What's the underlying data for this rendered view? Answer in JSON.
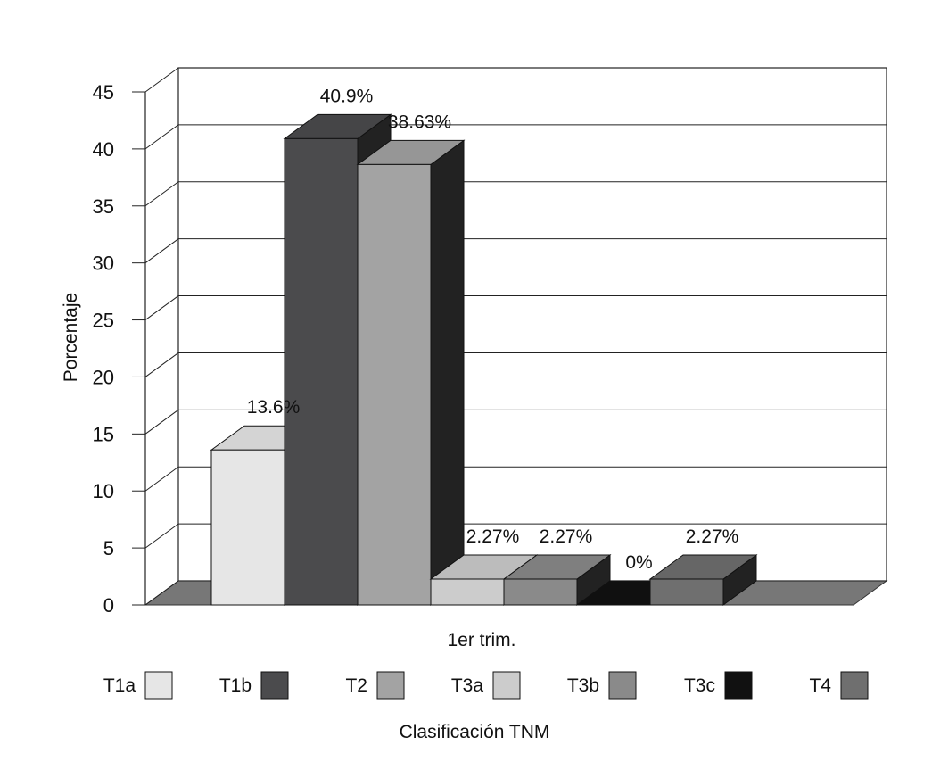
{
  "chart_data": {
    "type": "bar",
    "style": "3d-clustered-columns",
    "categories": [
      "1er trim."
    ],
    "series": [
      {
        "name": "T1a",
        "values": [
          13.6
        ],
        "label": "13.6%",
        "color": "#e6e6e6"
      },
      {
        "name": "T1b",
        "values": [
          40.9
        ],
        "label": "40.9%",
        "color": "#4b4b4d"
      },
      {
        "name": "T2",
        "values": [
          38.63
        ],
        "label": "38.63%",
        "color": "#a3a3a3"
      },
      {
        "name": "T3a",
        "values": [
          2.27
        ],
        "label": "2.27%",
        "color": "#cccccc"
      },
      {
        "name": "T3b",
        "values": [
          2.27
        ],
        "label": "2.27%",
        "color": "#8a8a8a"
      },
      {
        "name": "T3c",
        "values": [
          0
        ],
        "label": "0%",
        "color": "#111111"
      },
      {
        "name": "T4",
        "values": [
          2.27
        ],
        "label": "2.27%",
        "color": "#6f6f6f"
      }
    ],
    "ylabel": "Porcentaje",
    "xlabel": "Clasificación TNM",
    "ylim": [
      0,
      45
    ],
    "yticks": [
      "0",
      "5",
      "10",
      "15",
      "20",
      "25",
      "30",
      "35",
      "40",
      "45"
    ],
    "grid": true,
    "legend": "bottom"
  }
}
